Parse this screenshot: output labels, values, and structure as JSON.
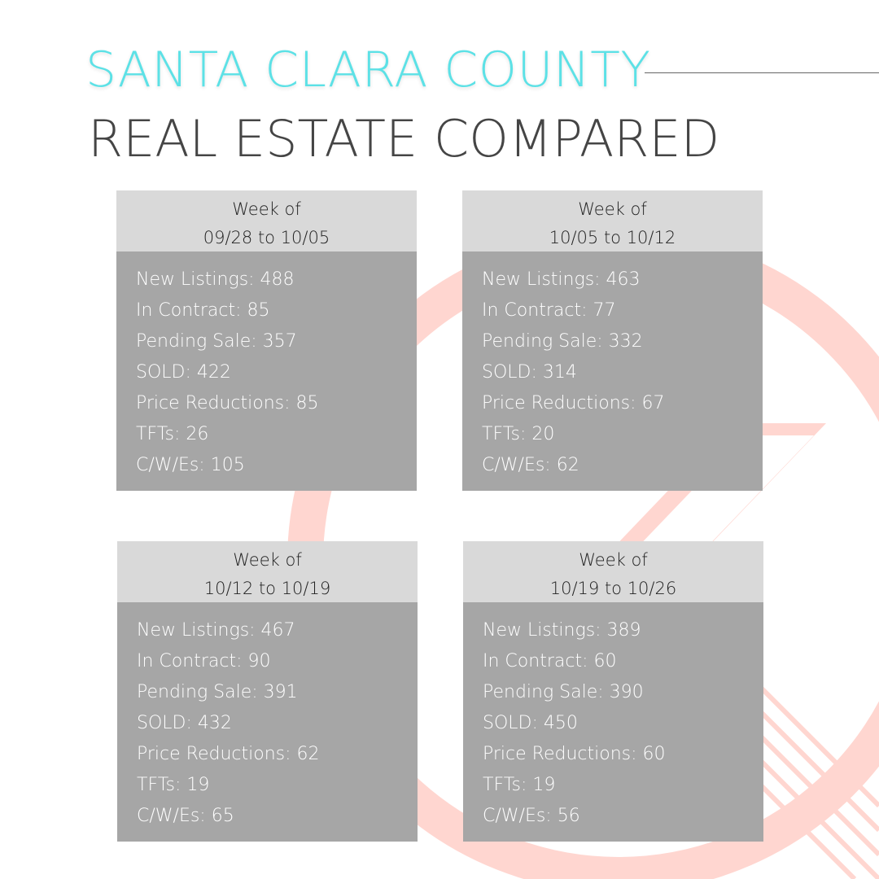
{
  "title": {
    "line1": "SANTA CLARA COUNTY",
    "line2": "REAL ESTATE COMPARED"
  },
  "colors": {
    "title_accent": "#5ce1e6",
    "title_dark": "#454545",
    "card_header": "#d9d9d9",
    "card_body": "#a6a6a6",
    "decoration": "#ffd6d0"
  },
  "cards": [
    {
      "header_line1": "Week of",
      "header_line2": "09/28 to 10/05",
      "stats": [
        "New Listings: 488",
        "In Contract: 85",
        "Pending Sale: 357",
        "SOLD: 422",
        "Price Reductions: 85",
        "TFTs: 26",
        "C/W/Es: 105"
      ]
    },
    {
      "header_line1": "Week of",
      "header_line2": "10/05 to 10/12",
      "stats": [
        "New Listings: 463",
        "In Contract: 77",
        "Pending Sale: 332",
        "SOLD: 314",
        "Price Reductions: 67",
        "TFTs: 20",
        "C/W/Es: 62"
      ]
    },
    {
      "header_line1": "Week of",
      "header_line2": "10/12 to 10/19",
      "stats": [
        "New Listings: 467",
        "In Contract: 90",
        "Pending Sale: 391",
        "SOLD: 432",
        "Price Reductions: 62",
        "TFTs: 19",
        "C/W/Es: 65"
      ]
    },
    {
      "header_line1": "Week of",
      "header_line2": "10/19 to 10/26",
      "stats": [
        "New Listings: 389",
        "In Contract: 60",
        "Pending Sale: 390",
        "SOLD: 450",
        "Price Reductions: 60",
        "TFTs: 19",
        "C/W/Es: 56"
      ]
    }
  ]
}
